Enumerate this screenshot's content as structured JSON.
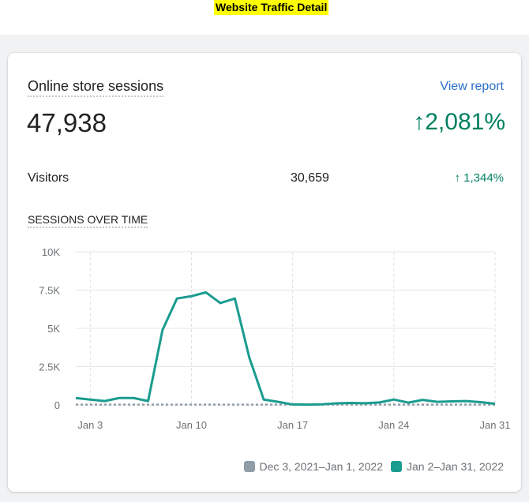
{
  "page": {
    "title": "Website Traffic Detail"
  },
  "card": {
    "title": "Online store sessions",
    "view_report": "View report",
    "total": "47,938",
    "change": "↑2,081%",
    "visitors_label": "Visitors",
    "visitors_value": "30,659",
    "visitors_change": "↑ 1,344%",
    "chart_heading": "SESSIONS OVER TIME"
  },
  "colors": {
    "current": "#1a9c8f",
    "previous": "#919ea8",
    "positive": "#008060",
    "link": "#2c6ecb"
  },
  "chart_data": {
    "type": "line",
    "x": [
      "Jan 2",
      "Jan 3",
      "Jan 4",
      "Jan 5",
      "Jan 6",
      "Jan 7",
      "Jan 8",
      "Jan 9",
      "Jan 10",
      "Jan 11",
      "Jan 12",
      "Jan 13",
      "Jan 14",
      "Jan 15",
      "Jan 16",
      "Jan 17",
      "Jan 18",
      "Jan 19",
      "Jan 20",
      "Jan 21",
      "Jan 22",
      "Jan 23",
      "Jan 24",
      "Jan 25",
      "Jan 26",
      "Jan 27",
      "Jan 28",
      "Jan 29",
      "Jan 30",
      "Jan 31"
    ],
    "x_tick_labels": [
      "Jan 3",
      "Jan 10",
      "Jan 17",
      "Jan 24",
      "Jan 31"
    ],
    "y_tick_labels": [
      "10K",
      "7.5K",
      "5K",
      "2.5K",
      "0"
    ],
    "y_ticks": [
      10000,
      7500,
      5000,
      2500,
      0
    ],
    "ylim": [
      0,
      10000
    ],
    "series": [
      {
        "name": "Jan 2–Jan 31, 2022",
        "values": [
          450,
          350,
          250,
          450,
          450,
          250,
          4900,
          6950,
          7100,
          7350,
          6650,
          6950,
          3100,
          350,
          200,
          30,
          20,
          40,
          100,
          130,
          110,
          160,
          350,
          150,
          330,
          200,
          230,
          250,
          180,
          80
        ]
      },
      {
        "name": "Dec 3, 2021–Jan 1, 2022",
        "values": [
          20,
          20,
          20,
          20,
          20,
          20,
          20,
          20,
          20,
          20,
          20,
          20,
          20,
          20,
          20,
          20,
          20,
          20,
          20,
          20,
          20,
          20,
          20,
          20,
          20,
          20,
          20,
          20,
          20,
          20
        ]
      }
    ]
  }
}
